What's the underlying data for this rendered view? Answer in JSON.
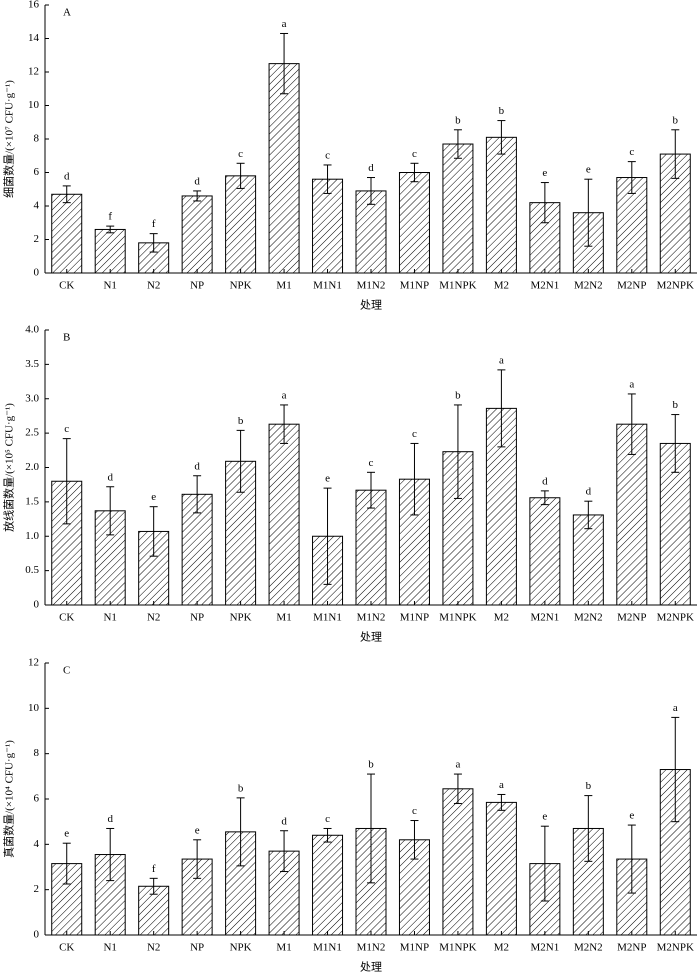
{
  "chart_data": [
    {
      "type": "bar",
      "panel_label": "A",
      "ylabel": "细菌数量/(×10⁷ CFU·g⁻¹)",
      "xlabel": "处理",
      "color": "#000000",
      "categories": [
        "CK",
        "N1",
        "N2",
        "NP",
        "NPK",
        "M1",
        "M1N1",
        "M1N2",
        "M1NP",
        "M1NPK",
        "M2",
        "M2N1",
        "M2N2",
        "M2NP",
        "M2NPK"
      ],
      "values": [
        4.7,
        2.6,
        1.8,
        4.6,
        5.8,
        12.5,
        5.6,
        4.9,
        6.0,
        7.7,
        8.1,
        4.2,
        3.6,
        5.7,
        7.1
      ],
      "errors": [
        0.5,
        0.2,
        0.55,
        0.3,
        0.75,
        1.8,
        0.85,
        0.8,
        0.55,
        0.85,
        1.0,
        1.2,
        2.0,
        0.95,
        1.45
      ],
      "annotations": [
        "d",
        "f",
        "f",
        "d",
        "c",
        "a",
        "c",
        "d",
        "c",
        "b",
        "b",
        "e",
        "e",
        "c",
        "b"
      ],
      "ylim": [
        0,
        16
      ],
      "yticks": [
        0,
        2,
        4,
        6,
        8,
        10,
        12,
        14,
        16
      ]
    },
    {
      "type": "bar",
      "panel_label": "B",
      "ylabel": "放线菌数量/(×10⁵ CFU·g⁻¹)",
      "xlabel": "处理",
      "color": "#000000",
      "categories": [
        "CK",
        "N1",
        "N2",
        "NP",
        "NPK",
        "M1",
        "M1N1",
        "M1N2",
        "M1NP",
        "M1NPK",
        "M2",
        "M2N1",
        "M2N2",
        "M2NP",
        "M2NPK"
      ],
      "values": [
        1.8,
        1.37,
        1.07,
        1.61,
        2.09,
        2.63,
        1.0,
        1.67,
        1.83,
        2.23,
        2.86,
        1.56,
        1.31,
        2.63,
        2.35
      ],
      "errors": [
        0.62,
        0.35,
        0.36,
        0.27,
        0.45,
        0.28,
        0.7,
        0.26,
        0.52,
        0.68,
        0.56,
        0.1,
        0.2,
        0.44,
        0.42
      ],
      "annotations": [
        "c",
        "d",
        "e",
        "d",
        "b",
        "a",
        "e",
        "c",
        "c",
        "b",
        "a",
        "d",
        "d",
        "a",
        "b"
      ],
      "ylim": [
        0,
        4
      ],
      "yticks": [
        0,
        0.5,
        {
          "value": 1,
          "label": "1.0"
        },
        1.5,
        {
          "value": 2,
          "label": "2.0"
        },
        2.5,
        {
          "value": 3,
          "label": "3.0"
        },
        3.5,
        {
          "value": 4,
          "label": "4.0"
        }
      ]
    },
    {
      "type": "bar",
      "panel_label": "C",
      "ylabel": "真菌数量/(×10⁴ CFU·g⁻¹)",
      "xlabel": "处理",
      "color": "#000000",
      "categories": [
        "CK",
        "N1",
        "N2",
        "NP",
        "NPK",
        "M1",
        "M1N1",
        "M1N2",
        "M1NP",
        "M1NPK",
        "M2",
        "M2N1",
        "M2N2",
        "M2NP",
        "M2NPK"
      ],
      "values": [
        3.15,
        3.55,
        2.15,
        3.35,
        4.55,
        3.7,
        4.4,
        4.7,
        4.2,
        6.45,
        5.85,
        3.15,
        4.7,
        3.35,
        7.3
      ],
      "errors": [
        0.9,
        1.15,
        0.35,
        0.85,
        1.5,
        0.9,
        0.3,
        2.4,
        0.85,
        0.65,
        0.35,
        1.65,
        1.45,
        1.5,
        2.3
      ],
      "annotations": [
        "e",
        "d",
        "f",
        "e",
        "b",
        "d",
        "c",
        "b",
        "c",
        "a",
        "a",
        "e",
        "b",
        "e",
        "a"
      ],
      "ylim": [
        0,
        12
      ],
      "yticks": [
        0,
        2,
        4,
        6,
        8,
        10,
        12
      ]
    }
  ]
}
